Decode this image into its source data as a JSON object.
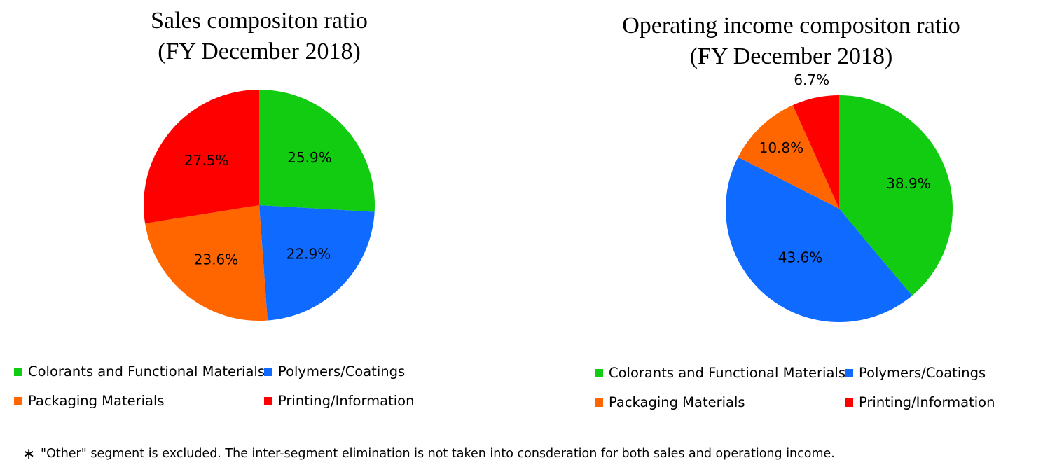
{
  "colors": {
    "colorants": "#11CC11",
    "polymers": "#0F6BFF",
    "packaging": "#FF6600",
    "printing": "#FF0000"
  },
  "chart_data": [
    {
      "type": "pie",
      "title": [
        "Sales compositon ratio",
        "(FY December 2018)"
      ],
      "series": [
        {
          "name": "Colorants and Functional Materials",
          "value": 25.9,
          "label": "25.9%",
          "color": "#11CC11"
        },
        {
          "name": "Polymers/Coatings",
          "value": 22.9,
          "label": "22.9%",
          "color": "#0F6BFF"
        },
        {
          "name": "Packaging Materials",
          "value": 23.6,
          "label": "23.6%",
          "color": "#FF6600"
        },
        {
          "name": "Printing/Information",
          "value": 27.5,
          "label": "27.5%",
          "color": "#FF0000"
        }
      ],
      "legend_position": "bottom"
    },
    {
      "type": "pie",
      "title": [
        "Operating income compositon  ratio",
        "(FY December 2018)"
      ],
      "series": [
        {
          "name": "Colorants and Functional Materials",
          "value": 38.9,
          "label": "38.9%",
          "color": "#11CC11"
        },
        {
          "name": "Polymers/Coatings",
          "value": 43.6,
          "label": "43.6%",
          "color": "#0F6BFF"
        },
        {
          "name": "Packaging Materials",
          "value": 10.8,
          "label": "10.8%",
          "color": "#FF6600"
        },
        {
          "name": "Printing/Information",
          "value": 6.7,
          "label": "6.7%",
          "color": "#FF0000"
        }
      ],
      "legend_position": "bottom"
    }
  ],
  "legend": [
    "Colorants and Functional Materials",
    "Polymers/Coatings",
    "Packaging Materials",
    "Printing/Information"
  ],
  "footnote": {
    "marker": "∗",
    "text": "\"Other\" segment is excluded. The inter-segment elimination is not taken into consderation for both sales and operationg income."
  }
}
